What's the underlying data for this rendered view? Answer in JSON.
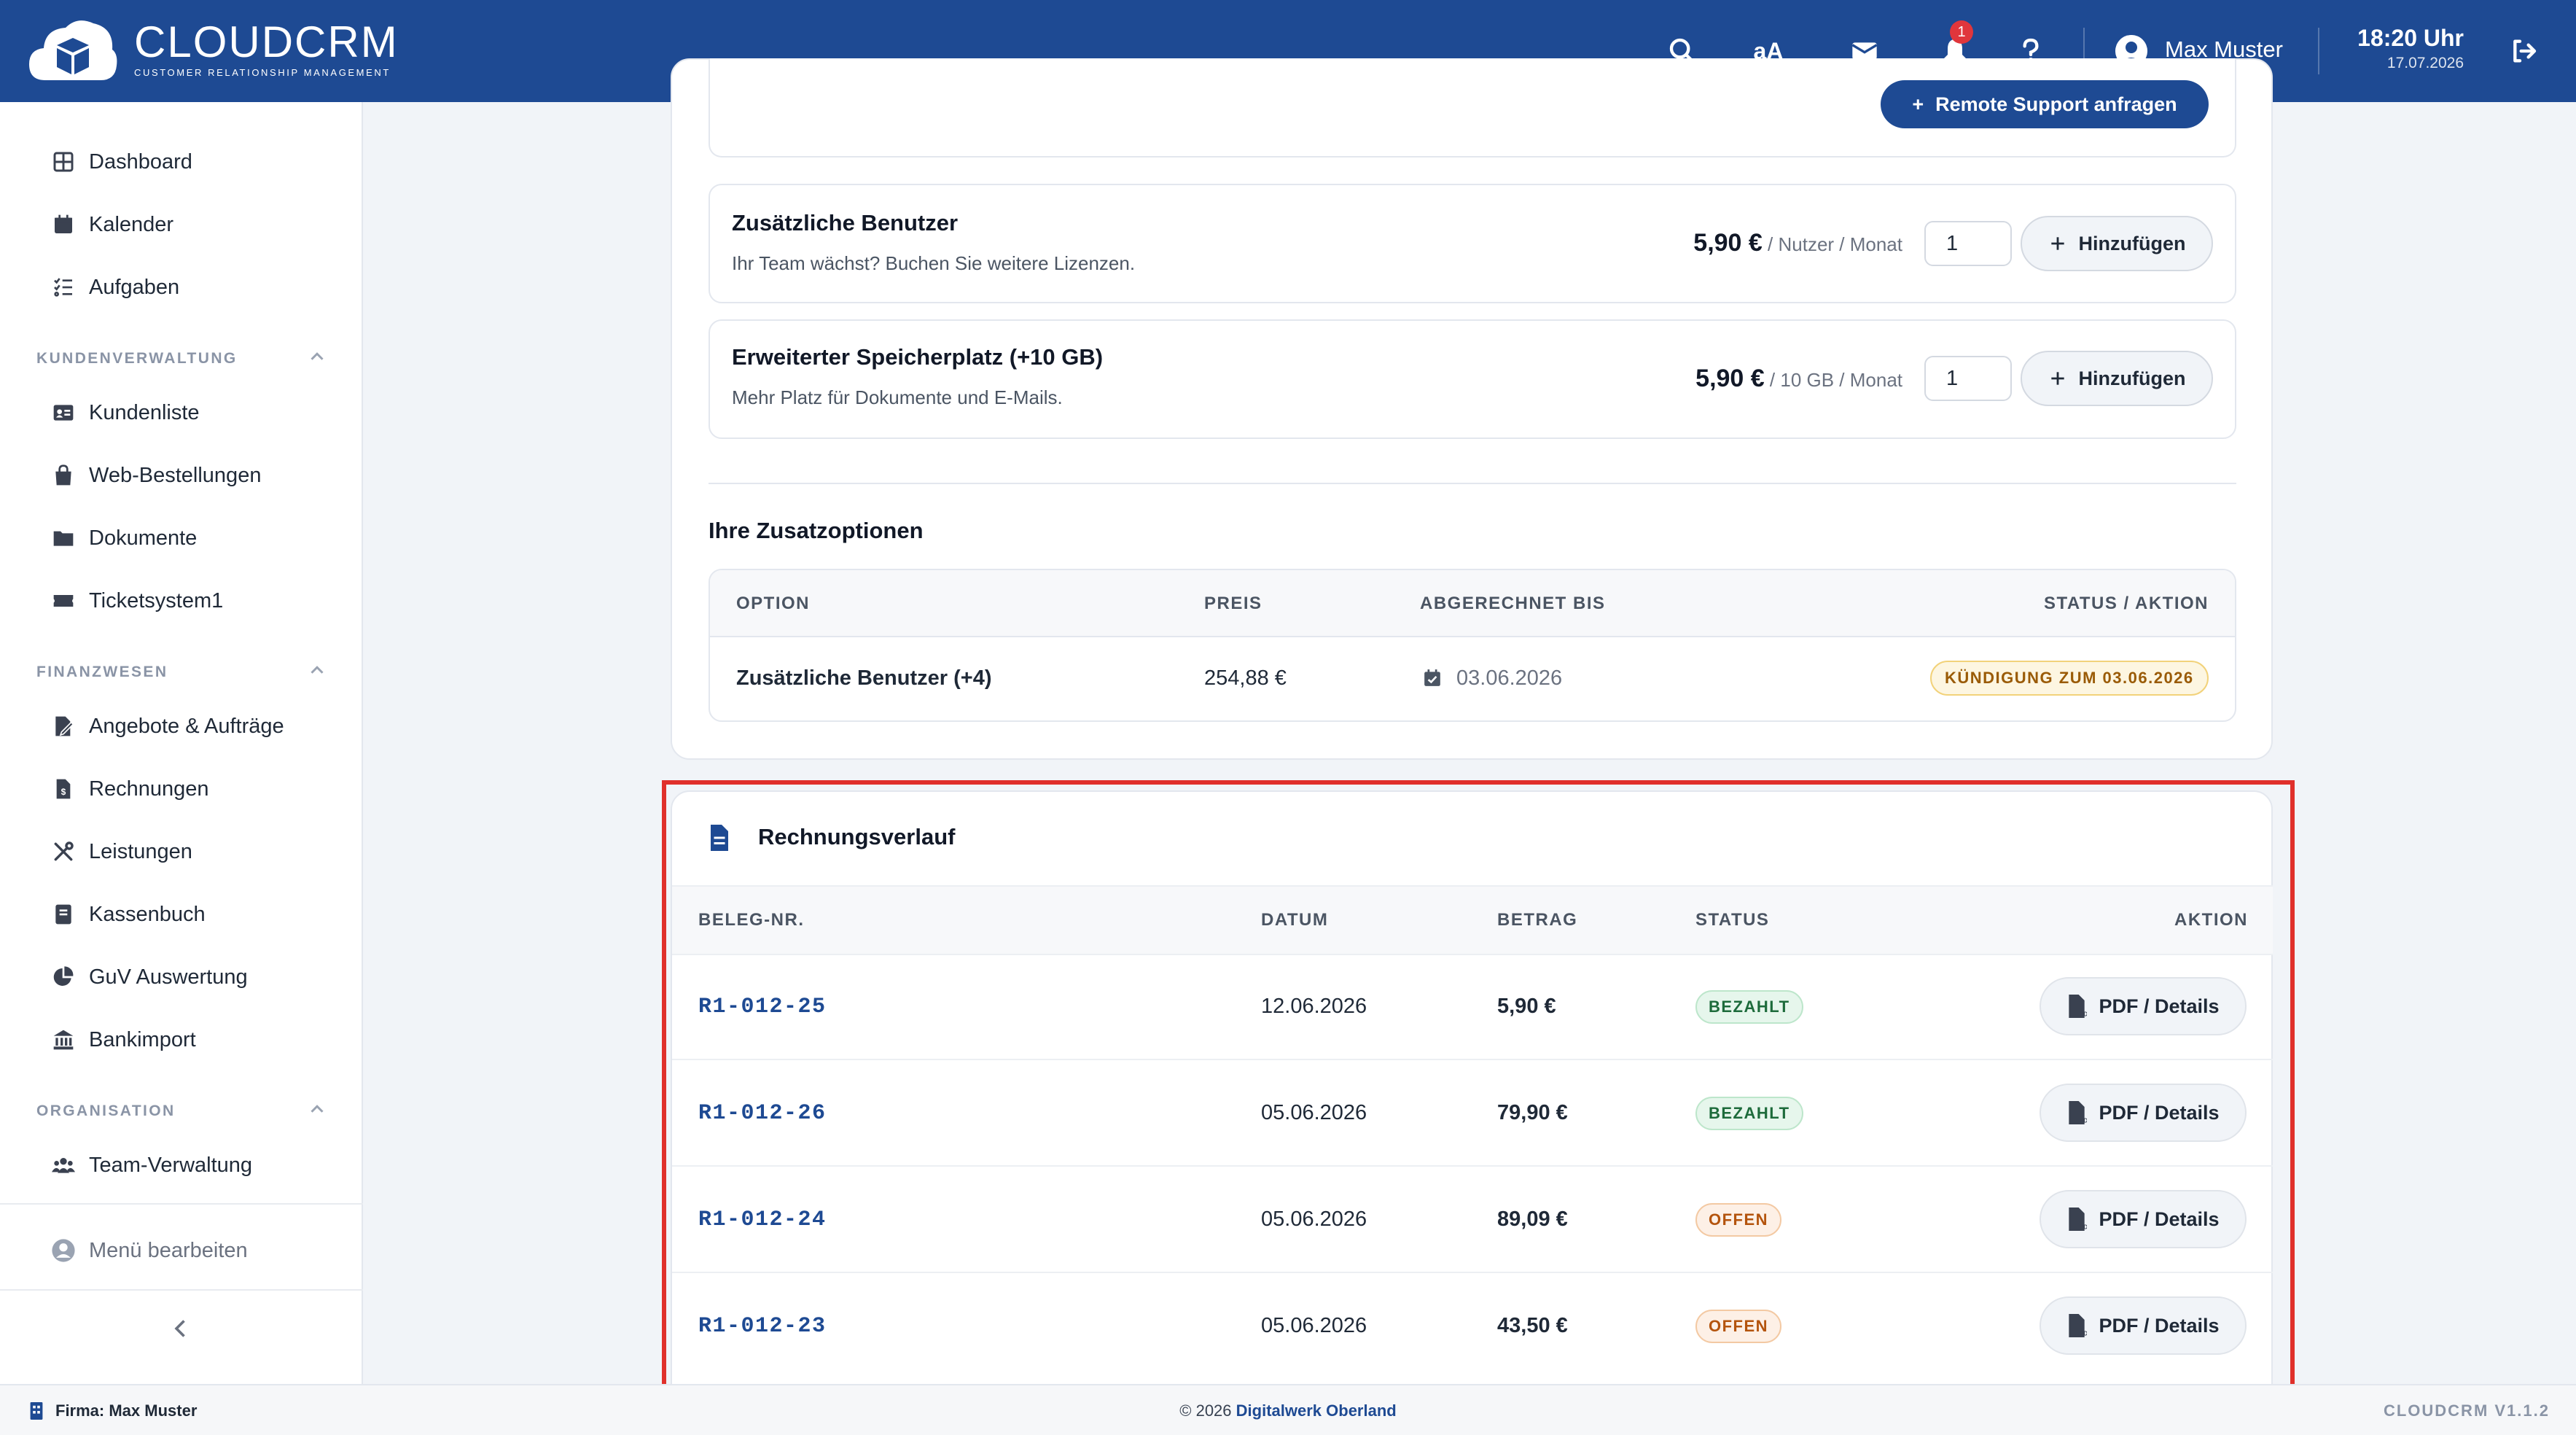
{
  "header": {
    "brand_name": "CLOUDCRM",
    "brand_sub": "CUSTOMER RELATIONSHIP MANAGEMENT",
    "font_size_toggle": "aA",
    "notification_count": "1",
    "user_name": "Max Muster",
    "time": "18:20 Uhr",
    "date": "17.07.2026",
    "icons": [
      "search-icon",
      "envelope-icon",
      "bell-icon",
      "help-icon",
      "user-icon",
      "logout-icon"
    ],
    "accent_color": "#1e4a93"
  },
  "sidebar": {
    "top_items": [
      {
        "label": "Dashboard",
        "icon": "grid-icon"
      },
      {
        "label": "Kalender",
        "icon": "calendar-icon"
      },
      {
        "label": "Aufgaben",
        "icon": "checklist-icon"
      }
    ],
    "sections": [
      {
        "title": "KUNDENVERWALTUNG",
        "items": [
          {
            "label": "Kundenliste",
            "icon": "id-card-icon"
          },
          {
            "label": "Web-Bestellungen",
            "icon": "shopping-bag-icon"
          },
          {
            "label": "Dokumente",
            "icon": "folder-icon"
          },
          {
            "label": "Ticketsystem1",
            "icon": "ticket-icon"
          }
        ]
      },
      {
        "title": "FINANZWESEN",
        "items": [
          {
            "label": "Angebote & Aufträge",
            "icon": "file-signature-icon"
          },
          {
            "label": "Rechnungen",
            "icon": "invoice-icon"
          },
          {
            "label": "Leistungen",
            "icon": "tools-icon"
          },
          {
            "label": "Kassenbuch",
            "icon": "book-icon"
          },
          {
            "label": "GuV Auswertung",
            "icon": "pie-chart-icon"
          },
          {
            "label": "Bankimport",
            "icon": "bank-icon"
          }
        ]
      },
      {
        "title": "ORGANISATION",
        "items": [
          {
            "label": "Team-Verwaltung",
            "icon": "users-icon"
          }
        ]
      }
    ],
    "menu_edit": "Menü bearbeiten"
  },
  "addons": {
    "remote_support_label": "Remote Support anfragen",
    "items": [
      {
        "title": "Zusätzliche Benutzer",
        "desc": "Ihr Team wächst? Buchen Sie weitere Lizenzen.",
        "price": "5,90 €",
        "unit": " / Nutzer / Monat",
        "qty": "1",
        "button": "Hinzufügen"
      },
      {
        "title": "Erweiterter Speicherplatz (+10 GB)",
        "desc": "Mehr Platz für Dokumente und E-Mails.",
        "price": "5,90 €",
        "unit": " / 10 GB / Monat",
        "qty": "1",
        "button": "Hinzufügen"
      }
    ]
  },
  "my_options": {
    "title": "Ihre Zusatzoptionen",
    "columns": [
      "OPTION",
      "PREIS",
      "ABGERECHNET BIS",
      "STATUS / AKTION"
    ],
    "rows": [
      {
        "option": "Zusätzliche Benutzer (+4)",
        "price": "254,88 €",
        "until": "03.06.2026",
        "status": "KÜNDIGUNG ZUM 03.06.2026"
      }
    ]
  },
  "invoices": {
    "title": "Rechnungsverlauf",
    "columns": [
      "BELEG-NR.",
      "DATUM",
      "BETRAG",
      "STATUS",
      "AKTION"
    ],
    "action_label": "PDF / Details",
    "rows": [
      {
        "number": "R1-012-25",
        "date": "12.06.2026",
        "amount": "5,90 €",
        "status": "BEZAHLT",
        "status_color": "#1d6b3b"
      },
      {
        "number": "R1-012-26",
        "date": "05.06.2026",
        "amount": "79,90 €",
        "status": "BEZAHLT",
        "status_color": "#1d6b3b"
      },
      {
        "number": "R1-012-24",
        "date": "05.06.2026",
        "amount": "89,09 €",
        "status": "OFFEN",
        "status_color": "#b4540d"
      },
      {
        "number": "R1-012-23",
        "date": "05.06.2026",
        "amount": "43,50 €",
        "status": "OFFEN",
        "status_color": "#b4540d"
      }
    ]
  },
  "footer": {
    "company": "Firma: Max Muster",
    "copyright_prefix": "© 2026 ",
    "copyright_link": "Digitalwerk Oberland",
    "version": "CLOUDCRM V1.1.2"
  }
}
